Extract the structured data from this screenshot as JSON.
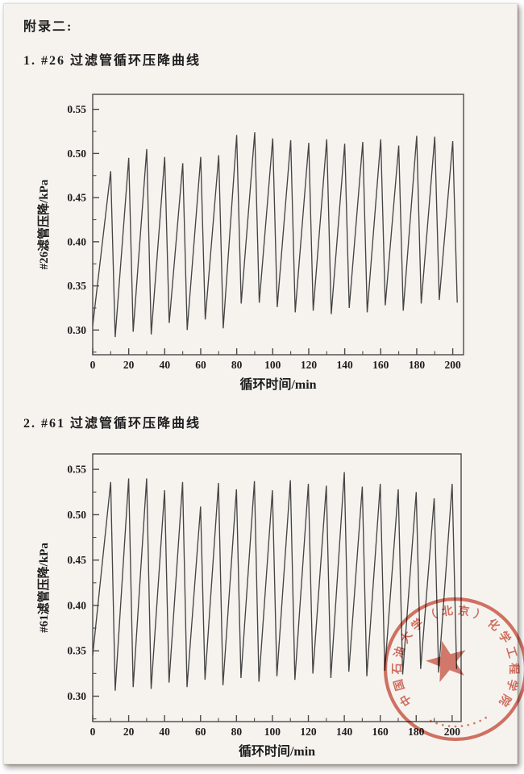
{
  "page": {
    "appendix_label": "附录二:",
    "background_hex": "#f6f3ef",
    "ink_hex": "#1d1d1d"
  },
  "sections": [
    {
      "heading": "1. #26 过滤管循环压降曲线"
    },
    {
      "heading": "2. #61 过滤管循环压降曲线"
    }
  ],
  "chart_data": [
    {
      "type": "line",
      "line_style": "sawtooth-cycles",
      "title": "1. #26 过滤管循环压降曲线",
      "xlabel": "循环时间/min",
      "ylabel": "#26滤管压降/kPa",
      "xlim": [
        0,
        206
      ],
      "ylim": [
        0.272,
        0.567
      ],
      "xticks": [
        0,
        20,
        40,
        60,
        80,
        100,
        120,
        140,
        160,
        180,
        200
      ],
      "x_minor_step": 10,
      "yticks": [
        0.3,
        0.35,
        0.4,
        0.45,
        0.5,
        0.55
      ],
      "y_minor_step": 0.025,
      "grid": false,
      "legend": "none",
      "line_color": "#454545",
      "cycle_period_min": 10,
      "fall_duration_min": 2.5,
      "start_value_kpa": 0.305,
      "peak_times_min": [
        10,
        20,
        30,
        40,
        50,
        60,
        70,
        80,
        90,
        100,
        110,
        120,
        130,
        140,
        150,
        160,
        170,
        180,
        190,
        200
      ],
      "peak_values_kpa": [
        0.48,
        0.495,
        0.505,
        0.496,
        0.489,
        0.496,
        0.498,
        0.521,
        0.524,
        0.517,
        0.515,
        0.512,
        0.516,
        0.511,
        0.513,
        0.516,
        0.509,
        0.52,
        0.519,
        0.514
      ],
      "trough_values_kpa": [
        0.292,
        0.298,
        0.295,
        0.308,
        0.3,
        0.312,
        0.302,
        0.33,
        0.331,
        0.326,
        0.32,
        0.322,
        0.318,
        0.325,
        0.32,
        0.328,
        0.322,
        0.33,
        0.334,
        0.331
      ]
    },
    {
      "type": "line",
      "line_style": "sawtooth-cycles",
      "title": "2. #61 过滤管循环压降曲线",
      "xlabel": "循环时间/min",
      "ylabel": "#61滤管压降/kPa",
      "xlim": [
        0,
        205
      ],
      "ylim": [
        0.272,
        0.567
      ],
      "xticks": [
        0,
        20,
        40,
        60,
        80,
        100,
        120,
        140,
        160,
        180,
        200
      ],
      "x_minor_step": 10,
      "yticks": [
        0.3,
        0.35,
        0.4,
        0.45,
        0.5,
        0.55
      ],
      "y_minor_step": 0.025,
      "grid": false,
      "legend": "none",
      "line_color": "#454545",
      "cycle_period_min": 10,
      "fall_duration_min": 2.5,
      "start_value_kpa": 0.345,
      "peak_times_min": [
        10,
        20,
        30,
        40,
        50,
        60,
        70,
        80,
        90,
        100,
        110,
        120,
        130,
        140,
        150,
        160,
        170,
        180,
        190,
        200
      ],
      "peak_values_kpa": [
        0.536,
        0.54,
        0.54,
        0.527,
        0.536,
        0.509,
        0.535,
        0.528,
        0.537,
        0.527,
        0.538,
        0.534,
        0.532,
        0.547,
        0.531,
        0.534,
        0.528,
        0.525,
        0.518,
        0.534
      ],
      "trough_values_kpa": [
        0.306,
        0.31,
        0.308,
        0.315,
        0.31,
        0.318,
        0.312,
        0.32,
        0.316,
        0.322,
        0.318,
        0.325,
        0.32,
        0.327,
        0.322,
        0.328,
        0.324,
        0.33,
        0.326,
        0.33
      ]
    }
  ],
  "stamp": {
    "shape": "circular-seal",
    "ring_text": "中国石油大学（北京）化学工程学院",
    "center_icon": "five-pointed-star",
    "color_hex": "#c94532"
  }
}
